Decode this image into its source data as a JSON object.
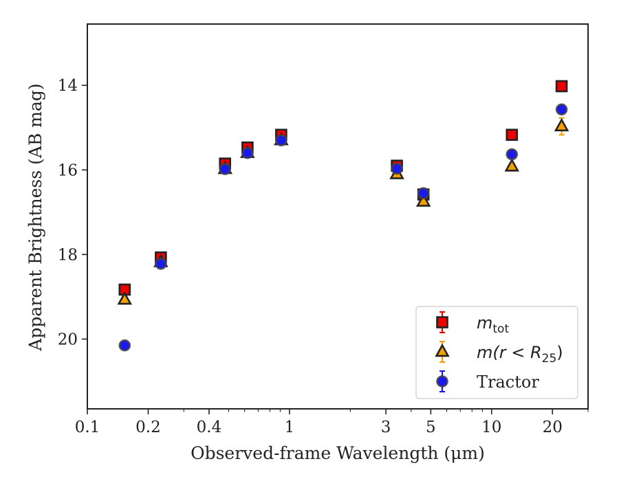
{
  "chart_data": {
    "type": "scatter",
    "xlabel": "Observed-frame Wavelength (μm)",
    "ylabel": "Apparent Brightness (AB mag)",
    "xscale": "log",
    "xlim": [
      0.1,
      30
    ],
    "ylim": [
      21.65,
      12.55
    ],
    "y_inverted": true,
    "xticks": [
      {
        "value": 0.1,
        "label": "0.1"
      },
      {
        "value": 0.2,
        "label": "0.2"
      },
      {
        "value": 0.4,
        "label": "0.4"
      },
      {
        "value": 1,
        "label": "1"
      },
      {
        "value": 3,
        "label": "3"
      },
      {
        "value": 5,
        "label": "5"
      },
      {
        "value": 10,
        "label": "10"
      },
      {
        "value": 20,
        "label": "20"
      }
    ],
    "yticks": [
      {
        "value": 14,
        "label": "14"
      },
      {
        "value": 16,
        "label": "16"
      },
      {
        "value": 18,
        "label": "18"
      },
      {
        "value": 20,
        "label": "20"
      }
    ],
    "grid": false,
    "legend_position": "lower-right",
    "series": [
      {
        "name": "m_tot",
        "marker": "square",
        "color": "#ee0000",
        "edge": "#222222",
        "points": [
          {
            "x": 0.153,
            "y": 18.83,
            "err": 0.05
          },
          {
            "x": 0.231,
            "y": 18.07,
            "err": 0.05
          },
          {
            "x": 0.48,
            "y": 15.85,
            "err": 0.05
          },
          {
            "x": 0.62,
            "y": 15.47,
            "err": 0.05
          },
          {
            "x": 0.91,
            "y": 15.17,
            "err": 0.05
          },
          {
            "x": 3.4,
            "y": 15.9,
            "err": 0.05
          },
          {
            "x": 4.6,
            "y": 16.58,
            "err": 0.06
          },
          {
            "x": 12.6,
            "y": 15.17,
            "err": 0.05
          },
          {
            "x": 22.2,
            "y": 14.02,
            "err": 0.05
          }
        ]
      },
      {
        "name": "m(r < R25)",
        "marker": "triangle",
        "color": "#f5a000",
        "edge": "#222222",
        "points": [
          {
            "x": 0.153,
            "y": 19.07,
            "err": 0.05
          },
          {
            "x": 0.231,
            "y": 18.18,
            "err": 0.05
          },
          {
            "x": 0.48,
            "y": 15.98,
            "err": 0.05
          },
          {
            "x": 0.62,
            "y": 15.6,
            "err": 0.05
          },
          {
            "x": 0.91,
            "y": 15.3,
            "err": 0.05
          },
          {
            "x": 3.4,
            "y": 16.1,
            "err": 0.05
          },
          {
            "x": 4.6,
            "y": 16.75,
            "err": 0.06
          },
          {
            "x": 12.6,
            "y": 15.92,
            "err": 0.06
          },
          {
            "x": 22.2,
            "y": 14.97,
            "err": 0.2
          }
        ]
      },
      {
        "name": "Tractor",
        "marker": "circle",
        "color": "#1a1aee",
        "edge": "#444444",
        "points": [
          {
            "x": 0.153,
            "y": 20.15,
            "err": 0.05
          },
          {
            "x": 0.231,
            "y": 18.22,
            "err": 0.05
          },
          {
            "x": 0.48,
            "y": 15.98,
            "err": 0.05
          },
          {
            "x": 0.62,
            "y": 15.6,
            "err": 0.05
          },
          {
            "x": 0.91,
            "y": 15.3,
            "err": 0.05
          },
          {
            "x": 3.4,
            "y": 15.97,
            "err": 0.05
          },
          {
            "x": 4.6,
            "y": 16.55,
            "err": 0.06
          },
          {
            "x": 12.6,
            "y": 15.63,
            "err": 0.05
          },
          {
            "x": 22.2,
            "y": 14.57,
            "err": 0.07
          }
        ]
      }
    ]
  },
  "legend": {
    "items": [
      {
        "marker": "square",
        "color": "#ee0000",
        "err_color": "#ee0000",
        "label_main": "m",
        "label_sub": "tot",
        "label_rest": ""
      },
      {
        "marker": "triangle",
        "color": "#f5a000",
        "err_color": "#f5a000",
        "label_main": "m(r < R",
        "label_sub": "25",
        "label_rest": ")"
      },
      {
        "marker": "circle",
        "color": "#1a1aee",
        "err_color": "#1a1aee",
        "label_main": "Tractor",
        "label_sub": "",
        "label_rest": ""
      }
    ]
  }
}
